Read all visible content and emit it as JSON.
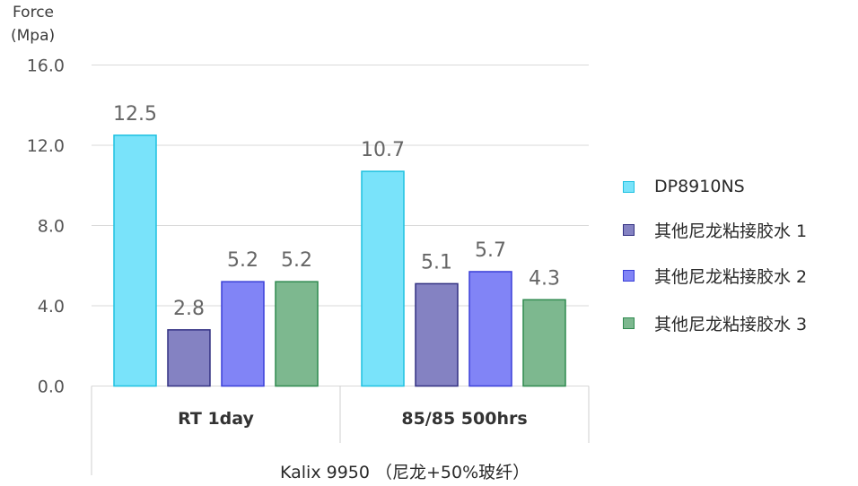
{
  "chart_data": {
    "type": "bar",
    "ylabel_line1": "Force",
    "ylabel_line2": "(Mpa)",
    "ylim": [
      0,
      16
    ],
    "yticks": [
      "0.0",
      "4.0",
      "8.0",
      "12.0",
      "16.0"
    ],
    "categories": [
      "RT 1day",
      "85/85 500hrs"
    ],
    "xlabel": "Kalix 9950 （尼龙+50%玻纤）",
    "grid": true,
    "legend_position": "right",
    "series": [
      {
        "name": "DP8910NS",
        "values": [
          12.5,
          10.7
        ],
        "labels": [
          "12.5",
          "10.7"
        ],
        "fill": "#79e3fa",
        "stroke": "#1fc1e0"
      },
      {
        "name": "其他尼龙粘接胶水 1",
        "values": [
          2.8,
          5.1
        ],
        "labels": [
          "2.8",
          "5.1"
        ],
        "fill": "#8482c2",
        "stroke": "#323082"
      },
      {
        "name": "其他尼龙粘接胶水 2",
        "values": [
          5.2,
          5.7
        ],
        "labels": [
          "5.2",
          "5.7"
        ],
        "fill": "#8184f6",
        "stroke": "#3a3fd8"
      },
      {
        "name": "其他尼龙粘接胶水 3",
        "values": [
          5.2,
          4.3
        ],
        "labels": [
          "5.2",
          "4.3"
        ],
        "fill": "#7db88f",
        "stroke": "#2f8a4f"
      }
    ]
  }
}
